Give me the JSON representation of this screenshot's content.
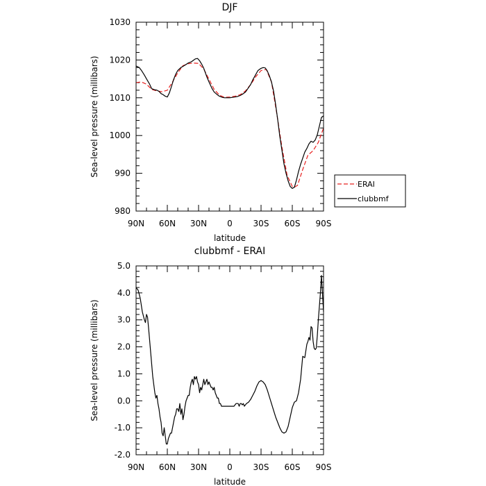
{
  "chart_data": [
    {
      "type": "line",
      "title": "DJF",
      "xlabel": "latitude",
      "ylabel": "Sea-level pressure (millibars)",
      "xlim": [
        90,
        -90
      ],
      "ylim": [
        980,
        1030
      ],
      "xticks": [
        90,
        60,
        30,
        0,
        -30,
        -60,
        -90
      ],
      "xticklabels": [
        "90N",
        "60N",
        "30N",
        "0",
        "30S",
        "60S",
        "90S"
      ],
      "yticks": [
        980,
        990,
        1000,
        1010,
        1020,
        1030
      ],
      "yticklabels": [
        "980",
        "990",
        "1000",
        "1010",
        "1020",
        "1030"
      ],
      "legend_position": "outside-right",
      "series": [
        {
          "name": "ERAI",
          "color": "#e8201f",
          "dash": "dashed",
          "x": [
            90,
            85,
            80,
            75,
            70,
            65,
            60,
            55,
            50,
            45,
            40,
            35,
            30,
            25,
            20,
            15,
            10,
            5,
            0,
            -5,
            -10,
            -15,
            -20,
            -25,
            -30,
            -35,
            -40,
            -45,
            -50,
            -55,
            -60,
            -62,
            -65,
            -70,
            -75,
            -80,
            -85,
            -90
          ],
          "values": [
            1014.0,
            1014.2,
            1013.6,
            1012.2,
            1011.8,
            1011.6,
            1012.0,
            1014.2,
            1016.6,
            1018.5,
            1019.0,
            1019.2,
            1019.1,
            1017.6,
            1014.9,
            1012.2,
            1010.7,
            1010.1,
            1010.2,
            1010.4,
            1010.8,
            1011.8,
            1013.5,
            1015.6,
            1017.2,
            1017.5,
            1014.2,
            1006.0,
            997.0,
            989.5,
            986.5,
            986.3,
            986.8,
            991.0,
            994.8,
            996.0,
            998.2,
            1002.0
          ]
        },
        {
          "name": "clubbmf",
          "color": "#000000",
          "dash": "solid",
          "x": [
            90,
            87,
            85,
            82,
            80,
            77,
            75,
            72,
            70,
            68,
            66,
            64,
            62,
            60,
            58,
            56,
            54,
            52,
            50,
            47,
            45,
            42,
            40,
            37,
            35,
            33,
            31,
            29,
            27,
            25,
            22,
            20,
            17,
            15,
            12,
            10,
            7,
            5,
            2,
            0,
            -2,
            -5,
            -7,
            -10,
            -12,
            -15,
            -17,
            -20,
            -22,
            -25,
            -27,
            -30,
            -32,
            -34,
            -36,
            -38,
            -40,
            -42,
            -44,
            -46,
            -48,
            -50,
            -52,
            -54,
            -56,
            -58,
            -60,
            -62,
            -64,
            -66,
            -68,
            -70,
            -72,
            -74,
            -76,
            -78,
            -80,
            -82,
            -84,
            -86,
            -88,
            -90
          ],
          "values": [
            1018.4,
            1018.0,
            1017.3,
            1016.0,
            1015.0,
            1013.6,
            1012.4,
            1012.1,
            1012.0,
            1011.7,
            1011.1,
            1010.8,
            1010.4,
            1010.2,
            1011.3,
            1013.0,
            1014.8,
            1016.2,
            1017.2,
            1018.0,
            1018.3,
            1018.8,
            1019.2,
            1019.5,
            1019.9,
            1020.3,
            1020.4,
            1019.8,
            1018.9,
            1017.8,
            1015.5,
            1014.2,
            1012.4,
            1011.5,
            1010.8,
            1010.4,
            1010.1,
            1010.0,
            1010.0,
            1010.0,
            1010.1,
            1010.2,
            1010.3,
            1010.6,
            1010.9,
            1011.5,
            1012.3,
            1013.5,
            1014.7,
            1016.2,
            1017.2,
            1017.8,
            1018.0,
            1017.9,
            1017.1,
            1015.8,
            1014.2,
            1011.8,
            1008.2,
            1004.2,
            999.8,
            996.2,
            992.5,
            990.0,
            988.0,
            986.5,
            986.0,
            986.3,
            988.2,
            990.5,
            992.4,
            994.0,
            995.6,
            996.6,
            997.8,
            998.5,
            998.2,
            998.8,
            1000.2,
            1002.5,
            1004.8,
            1005.2
          ]
        }
      ]
    },
    {
      "type": "line",
      "title": "clubbmf - ERAI",
      "xlabel": "latitude",
      "ylabel": "Sea-level pressure (millibars)",
      "xlim": [
        90,
        -90
      ],
      "ylim": [
        -2.0,
        5.0
      ],
      "xticks": [
        90,
        60,
        30,
        0,
        -30,
        -60,
        -90
      ],
      "xticklabels": [
        "90N",
        "60N",
        "30N",
        "0",
        "30S",
        "60S",
        "90S"
      ],
      "yticks": [
        -2.0,
        -1.0,
        0.0,
        1.0,
        2.0,
        3.0,
        4.0,
        5.0
      ],
      "yticklabels": [
        "-2.0",
        "-1.0",
        "0.0",
        "1.0",
        "2.0",
        "3.0",
        "4.0",
        "5.0"
      ],
      "series": [
        {
          "color": "#000000",
          "dash": "solid",
          "x": [
            90,
            88,
            86,
            84,
            82,
            81,
            80,
            79,
            78,
            76,
            74,
            72,
            71,
            70,
            69,
            68,
            67,
            66,
            65,
            64,
            63,
            62,
            61,
            60,
            59,
            58,
            57,
            56,
            55,
            53,
            52,
            51,
            50,
            49,
            48,
            47,
            46,
            45,
            44,
            43,
            42,
            41,
            40,
            39,
            38,
            37,
            36,
            35,
            34,
            33,
            32,
            31,
            30,
            29,
            28,
            27,
            26,
            25,
            24,
            23,
            22,
            21,
            20,
            19,
            18,
            17,
            16,
            15,
            14,
            13,
            12,
            11,
            10,
            9,
            8,
            7,
            6,
            5,
            4,
            3,
            2,
            1,
            0,
            -2,
            -4,
            -6,
            -8,
            -9,
            -10,
            -11,
            -12,
            -13,
            -14,
            -15,
            -16,
            -18,
            -20,
            -22,
            -24,
            -26,
            -28,
            -30,
            -32,
            -34,
            -36,
            -38,
            -40,
            -42,
            -44,
            -46,
            -48,
            -50,
            -52,
            -54,
            -56,
            -58,
            -60,
            -62,
            -64,
            -66,
            -68,
            -70,
            -72,
            -74,
            -75,
            -76,
            -77,
            -78,
            -79,
            -80,
            -81,
            -82,
            -83,
            -84,
            -85,
            -86,
            -87,
            -88,
            -89,
            -90
          ],
          "values": [
            4.2,
            4.1,
            3.8,
            3.3,
            3.0,
            2.9,
            3.2,
            3.1,
            2.7,
            1.8,
            0.9,
            0.3,
            0.1,
            0.2,
            -0.1,
            -0.3,
            -0.6,
            -0.8,
            -1.2,
            -1.3,
            -1.0,
            -1.3,
            -1.6,
            -1.6,
            -1.4,
            -1.3,
            -1.2,
            -1.2,
            -1.0,
            -0.6,
            -0.5,
            -0.3,
            -0.3,
            -0.4,
            -0.1,
            -0.5,
            -0.3,
            -0.7,
            -0.5,
            -0.2,
            0.0,
            0.1,
            0.2,
            0.2,
            0.5,
            0.7,
            0.8,
            0.6,
            0.9,
            0.8,
            0.9,
            0.7,
            0.6,
            0.3,
            0.5,
            0.4,
            0.6,
            0.8,
            0.6,
            0.7,
            0.8,
            0.6,
            0.7,
            0.6,
            0.5,
            0.5,
            0.4,
            0.5,
            0.3,
            0.2,
            0.1,
            0.1,
            -0.1,
            -0.1,
            -0.2,
            -0.2,
            -0.2,
            -0.2,
            -0.2,
            -0.2,
            -0.2,
            -0.2,
            -0.2,
            -0.2,
            -0.2,
            -0.1,
            -0.1,
            -0.2,
            -0.1,
            -0.1,
            -0.15,
            -0.1,
            -0.2,
            -0.15,
            -0.1,
            -0.05,
            0.05,
            0.2,
            0.35,
            0.55,
            0.7,
            0.75,
            0.7,
            0.6,
            0.4,
            0.15,
            -0.1,
            -0.35,
            -0.6,
            -0.8,
            -1.0,
            -1.15,
            -1.2,
            -1.15,
            -0.95,
            -0.6,
            -0.25,
            -0.05,
            0.0,
            0.3,
            0.8,
            1.65,
            1.6,
            2.1,
            2.2,
            2.35,
            2.25,
            2.75,
            2.7,
            2.2,
            1.95,
            1.9,
            1.95,
            2.4,
            3.0,
            3.5,
            4.0,
            4.65,
            3.95,
            3.3
          ]
        }
      ]
    }
  ]
}
